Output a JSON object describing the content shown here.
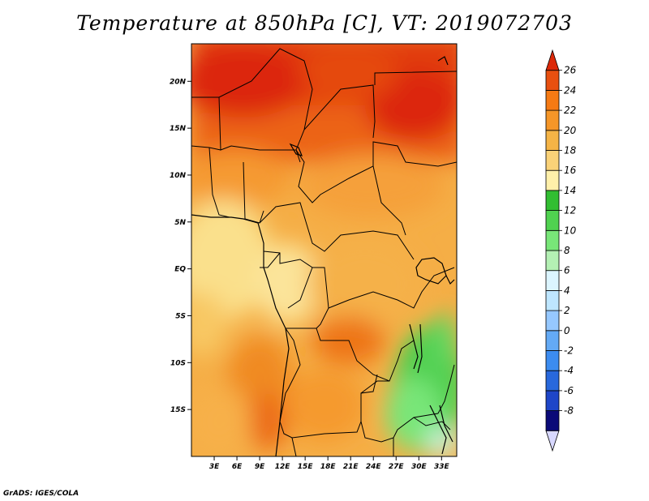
{
  "title": "Temperature at 850hPa [C], VT: 2019072703",
  "credit": "GrADS: IGES/COLA",
  "map": {
    "lon_range": [
      0,
      35
    ],
    "lat_range": [
      -20,
      24
    ],
    "lat_ticks": [
      {
        "label": "20N",
        "value": 20
      },
      {
        "label": "15N",
        "value": 15
      },
      {
        "label": "10N",
        "value": 10
      },
      {
        "label": "5N",
        "value": 5
      },
      {
        "label": "EQ",
        "value": 0
      },
      {
        "label": "5S",
        "value": -5
      },
      {
        "label": "10S",
        "value": -10
      },
      {
        "label": "15S",
        "value": -15
      }
    ],
    "lon_ticks": [
      {
        "label": "3E",
        "value": 3
      },
      {
        "label": "6E",
        "value": 6
      },
      {
        "label": "9E",
        "value": 9
      },
      {
        "label": "12E",
        "value": 12
      },
      {
        "label": "15E",
        "value": 15
      },
      {
        "label": "18E",
        "value": 18
      },
      {
        "label": "21E",
        "value": 21
      },
      {
        "label": "24E",
        "value": 24
      },
      {
        "label": "27E",
        "value": 27
      },
      {
        "label": "30E",
        "value": 30
      },
      {
        "label": "33E",
        "value": 33
      }
    ]
  },
  "colorbar": {
    "labels": [
      "26",
      "24",
      "22",
      "20",
      "18",
      "16",
      "14",
      "12",
      "10",
      "8",
      "6",
      "4",
      "2",
      "0",
      "-2",
      "-4",
      "-6",
      "-8"
    ],
    "colors": [
      "#d8d8ff",
      "#0a0a78",
      "#1e46c8",
      "#2868dc",
      "#3c8cf0",
      "#64aaf5",
      "#96c8ff",
      "#bee6ff",
      "#dcf5ff",
      "#b4f0b4",
      "#78e678",
      "#50d250",
      "#32be32",
      "#fff0aa",
      "#fad278",
      "#f5b446",
      "#f59628",
      "#f57a14",
      "#e85010",
      "#dc2808"
    ]
  }
}
